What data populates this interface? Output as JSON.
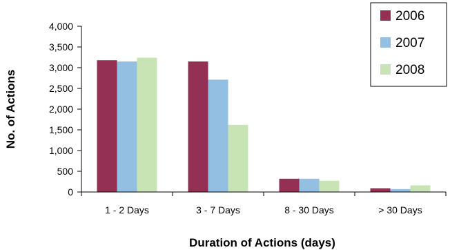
{
  "chart_data": {
    "type": "bar",
    "categories": [
      "1 - 2 Days",
      "3 - 7 Days",
      "8 - 30 Days",
      "> 30 Days"
    ],
    "series": [
      {
        "name": "2006",
        "values": [
          3180,
          3150,
          320,
          90
        ],
        "color": "#953055"
      },
      {
        "name": "2007",
        "values": [
          3150,
          2710,
          320,
          70
        ],
        "color": "#93bfe3"
      },
      {
        "name": "2008",
        "values": [
          3240,
          1620,
          270,
          160
        ],
        "color": "#c9e4b4"
      }
    ],
    "title": "",
    "xlabel": "Duration of Actions (days)",
    "ylabel": "No. of Actions",
    "ylim": [
      0,
      4000
    ],
    "yticks": [
      0,
      500,
      1000,
      1500,
      2000,
      2500,
      3000,
      3500,
      4000
    ],
    "ytick_labels": [
      "0",
      "500",
      "1,000",
      "1,500",
      "2,000",
      "2,500",
      "3,000",
      "3,500",
      "4,000"
    ],
    "grid": false,
    "legend_position": "top-right"
  }
}
